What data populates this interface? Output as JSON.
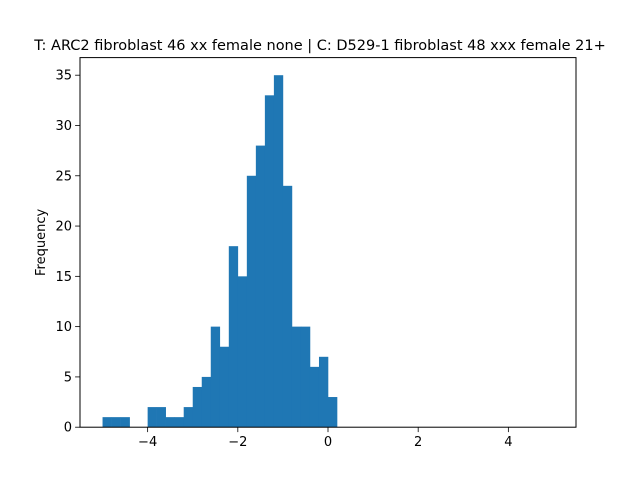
{
  "chart_data": {
    "type": "bar",
    "title": "T: ARC2 fibroblast 46 xx female none | C: D529-1 fibroblast 48 xxx female 21+",
    "xlabel": "",
    "ylabel": "Frequency",
    "xlim": [
      -5.5,
      5.5
    ],
    "ylim": [
      0,
      36.75
    ],
    "xticks": [
      -4,
      -2,
      0,
      2,
      4
    ],
    "xtick_labels": [
      "−4",
      "−2",
      "0",
      "2",
      "4"
    ],
    "yticks": [
      0,
      5,
      10,
      15,
      20,
      25,
      30,
      35
    ],
    "ytick_labels": [
      "0",
      "5",
      "10",
      "15",
      "20",
      "25",
      "30",
      "35"
    ],
    "bin_start": -5.0,
    "bin_end": 5.0,
    "bin_count": 50,
    "bin_width": 0.2,
    "values": [
      1,
      1,
      1,
      0,
      0,
      2,
      2,
      1,
      1,
      2,
      4,
      5,
      10,
      8,
      18,
      15,
      25,
      28,
      33,
      35,
      24,
      10,
      10,
      6,
      7,
      3,
      0,
      0,
      0,
      0,
      0,
      0,
      0,
      0,
      0,
      0,
      0,
      0,
      0,
      0,
      0,
      0,
      0,
      0,
      0,
      0,
      0,
      0,
      0,
      0
    ],
    "bar_color": "#1f77b4",
    "grid": false
  }
}
